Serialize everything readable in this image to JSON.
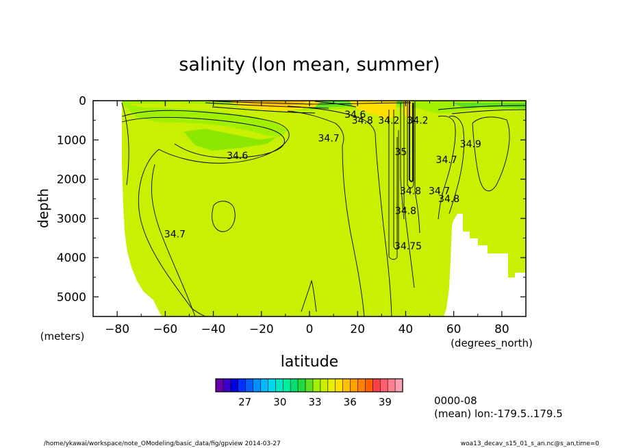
{
  "chart_data": {
    "type": "heatmap",
    "title": "salinity (lon mean, summer)",
    "xlabel": "latitude",
    "x_unit": "(degrees_north)",
    "ylabel": "depth",
    "y_unit": "(meters)",
    "xlim": [
      -90,
      90
    ],
    "ylim": [
      0,
      5500
    ],
    "y_reversed": true,
    "x_ticks": [
      -80,
      -60,
      -40,
      -20,
      0,
      20,
      40,
      60,
      80
    ],
    "y_ticks": [
      0,
      1000,
      2000,
      3000,
      4000,
      5000
    ],
    "contour_labels": [
      {
        "text": "34.6",
        "x": -30,
        "y": 1400
      },
      {
        "text": "34.7",
        "x": -56,
        "y": 3400
      },
      {
        "text": "34.7",
        "x": 8,
        "y": 950
      },
      {
        "text": "34.6",
        "x": 19,
        "y": 350
      },
      {
        "text": "34.8",
        "x": 22,
        "y": 500
      },
      {
        "text": "34.2",
        "x": 33,
        "y": 500
      },
      {
        "text": "35",
        "x": 38,
        "y": 1300
      },
      {
        "text": "34.2",
        "x": 45,
        "y": 500
      },
      {
        "text": "34.8",
        "x": 42,
        "y": 2300
      },
      {
        "text": "34.8",
        "x": 40,
        "y": 2800
      },
      {
        "text": "34.75",
        "x": 41,
        "y": 3700
      },
      {
        "text": "34.7",
        "x": 57,
        "y": 1500
      },
      {
        "text": "34.7",
        "x": 54,
        "y": 2300
      },
      {
        "text": "34.8",
        "x": 58,
        "y": 2500
      },
      {
        "text": "34.9",
        "x": 67,
        "y": 1100
      }
    ],
    "colorbar": {
      "ticks": [
        27,
        30,
        33,
        36,
        39
      ],
      "min": 24.5,
      "max": 40.5,
      "colors": [
        "#6a00a8",
        "#3a00c8",
        "#0000e0",
        "#0030ff",
        "#0060ff",
        "#0090ff",
        "#00b8ff",
        "#00d8f0",
        "#00e8c8",
        "#00f0a0",
        "#00e070",
        "#20d840",
        "#60e020",
        "#a0f000",
        "#c8f000",
        "#e8f000",
        "#ffe000",
        "#ffc000",
        "#ffa000",
        "#ff8000",
        "#ff6000",
        "#ff4040",
        "#ff6070",
        "#ff8090",
        "#ffa0b0"
      ]
    }
  },
  "info": {
    "time": "0000-08",
    "mean": "(mean) lon:-179.5..179.5"
  },
  "footer": {
    "path": "/home/ykawai/workspace/note_OModeling/basic_data/fig/gpview  2014-03-27",
    "file": "woa13_decav_s15_01_s_an.nc@s_an,time=0"
  }
}
